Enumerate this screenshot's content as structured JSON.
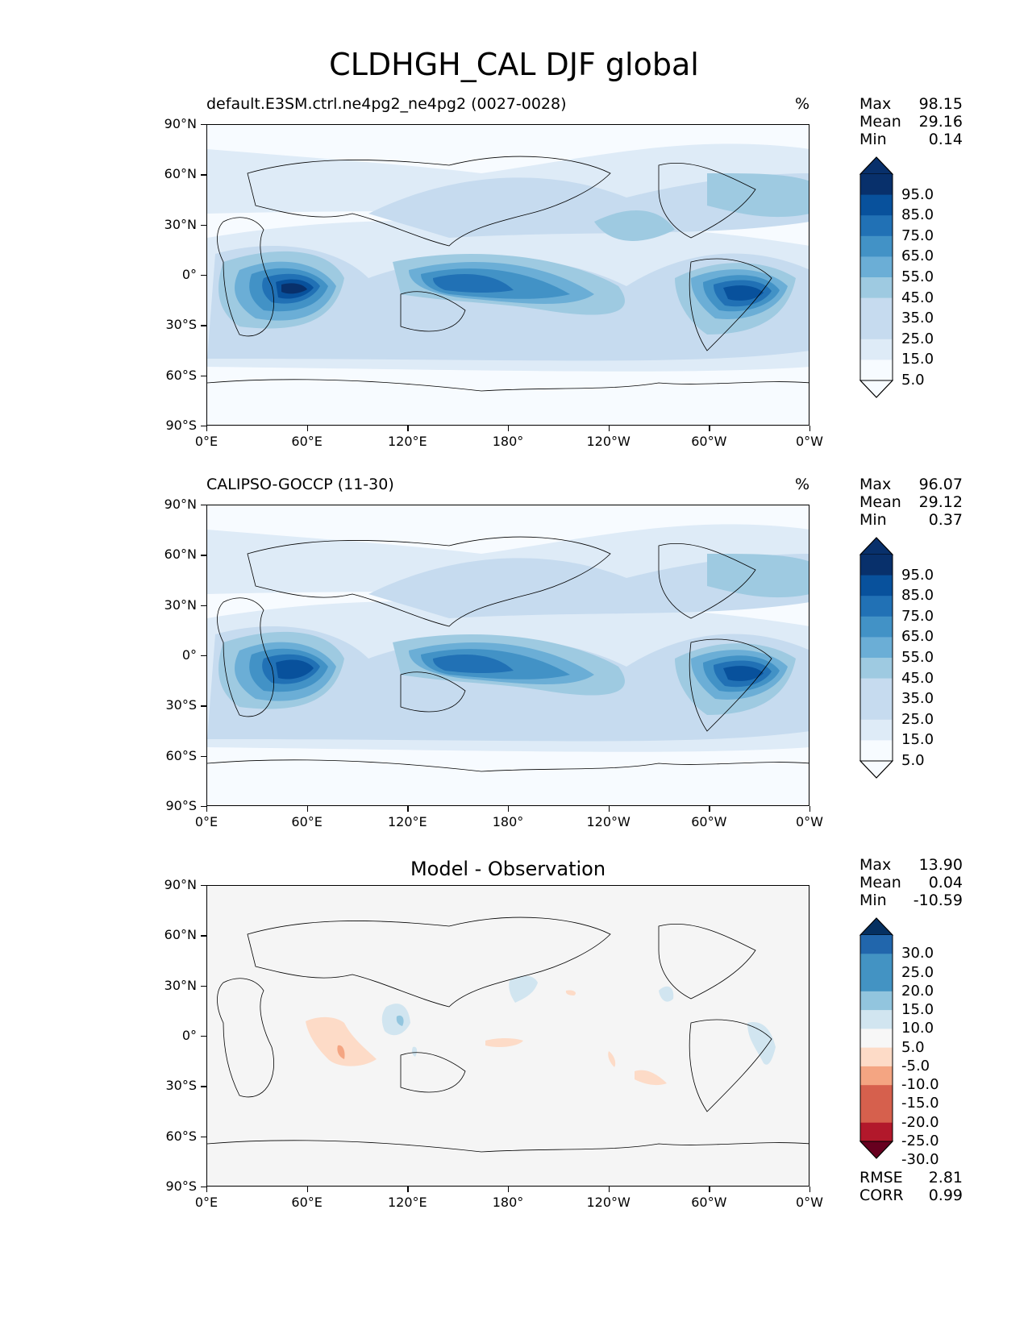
{
  "figure_title": "CLDHGH_CAL DJF global",
  "x_ticks": [
    "0°E",
    "60°E",
    "120°E",
    "180°",
    "120°W",
    "60°W",
    "0°W"
  ],
  "y_ticks": [
    "90°N",
    "60°N",
    "30°N",
    "0°",
    "30°S",
    "60°S",
    "90°S"
  ],
  "panels": [
    {
      "title": "default.E3SM.ctrl.ne4pg2_ne4pg2 (0027-0028)",
      "units": "%",
      "stats": {
        "max_label": "Max",
        "max": "98.15",
        "mean_label": "Mean",
        "mean": "29.16",
        "min_label": "Min",
        "min": "0.14"
      },
      "colorbar_labels": [
        "95.0",
        "85.0",
        "75.0",
        "65.0",
        "55.0",
        "45.0",
        "35.0",
        "25.0",
        "15.0",
        "5.0"
      ]
    },
    {
      "title": "CALIPSO-GOCCP (11-30)",
      "units": "%",
      "stats": {
        "max_label": "Max",
        "max": "96.07",
        "mean_label": "Mean",
        "mean": "29.12",
        "min_label": "Min",
        "min": "0.37"
      },
      "colorbar_labels": [
        "95.0",
        "85.0",
        "75.0",
        "65.0",
        "55.0",
        "45.0",
        "35.0",
        "25.0",
        "15.0",
        "5.0"
      ]
    },
    {
      "title": "Model - Observation",
      "stats": {
        "max_label": "Max",
        "max": "13.90",
        "mean_label": "Mean",
        "mean": "0.04",
        "min_label": "Min",
        "min": "-10.59"
      },
      "colorbar_labels": [
        "30.0",
        "25.0",
        "20.0",
        "15.0",
        "10.0",
        "5.0",
        "-5.0",
        "-10.0",
        "-15.0",
        "-20.0",
        "-25.0",
        "-30.0"
      ],
      "metrics": {
        "rmse_label": "RMSE",
        "rmse": "2.81",
        "corr_label": "CORR",
        "corr": "0.99"
      }
    }
  ],
  "colors": {
    "blues": [
      "#f7fbff",
      "#deebf7",
      "#c6dbef",
      "#9ecae1",
      "#6baed6",
      "#4292c6",
      "#2171b5",
      "#08519c",
      "#08306b"
    ],
    "diff_neg": [
      "#fddbc7",
      "#f4a582",
      "#d6604d",
      "#b2182b",
      "#67001f"
    ],
    "diff_pos": [
      "#d1e5f0",
      "#92c5de",
      "#4393c3",
      "#2166ac",
      "#053061"
    ],
    "diff_background": "#f5f5f5"
  },
  "chart_data": {
    "type": "heatmap",
    "variable": "CLDHGH_CAL",
    "season": "DJF",
    "region": "global",
    "xlim": [
      0,
      360
    ],
    "ylim": [
      -90,
      90
    ],
    "model_range_pct": [
      0.14,
      98.15
    ],
    "obs_range_pct": [
      0.37,
      96.07
    ],
    "diff_range_pct": [
      -10.59,
      13.9
    ]
  }
}
